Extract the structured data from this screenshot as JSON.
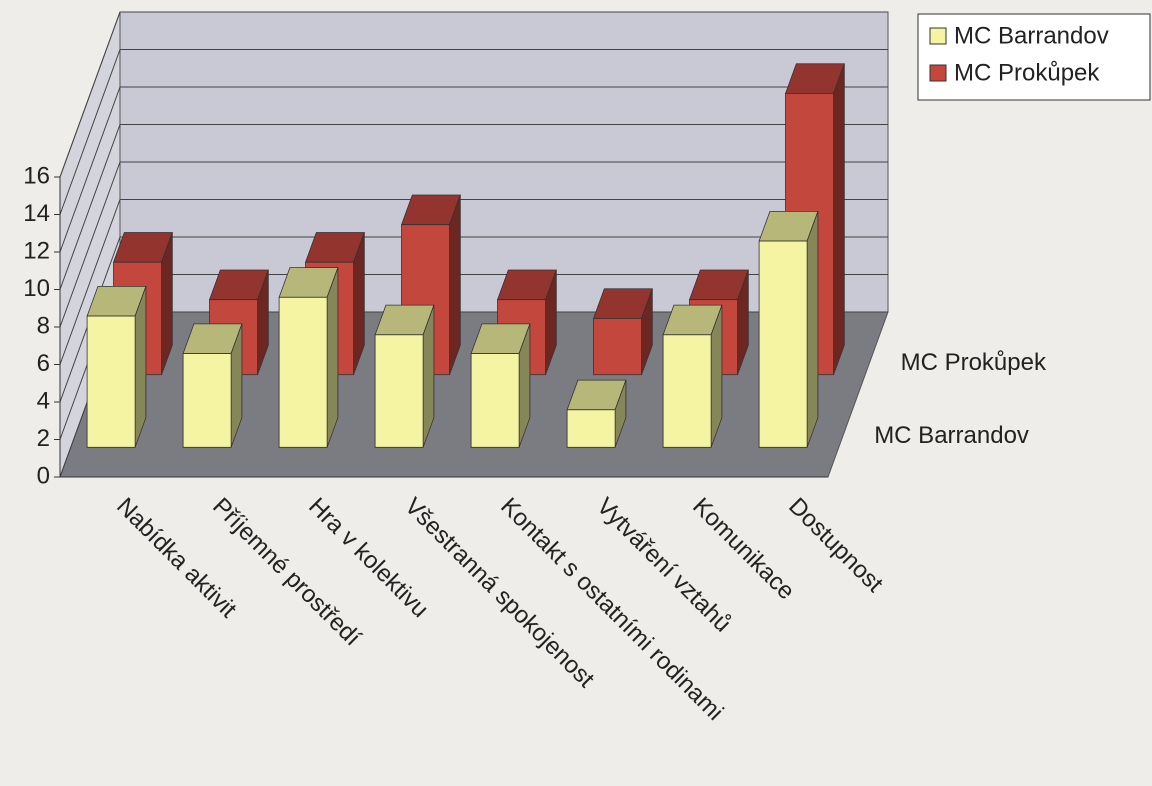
{
  "chart_data": {
    "type": "bar3d",
    "categories": [
      "Nabídka aktivit",
      "Příjemné prostředí",
      "Hra v kolektivu",
      "Všestranná spokojenost",
      "Kontakt s ostatními rodinami",
      "Vytváření vztahů",
      "Komunikace",
      "Dostupnost"
    ],
    "series": [
      {
        "name": "MC Barrandov",
        "color": "#f4f4a2",
        "values": [
          7,
          5,
          8,
          6,
          5,
          2,
          6,
          11
        ]
      },
      {
        "name": "MC Prokůpek",
        "color": "#c4473d",
        "values": [
          6,
          4,
          6,
          8,
          4,
          3,
          4,
          15
        ]
      }
    ],
    "ylim": [
      0,
      16
    ],
    "yticks": [
      0,
      2,
      4,
      6,
      8,
      10,
      12,
      14,
      16
    ],
    "grid": true,
    "legend": "top-right"
  }
}
